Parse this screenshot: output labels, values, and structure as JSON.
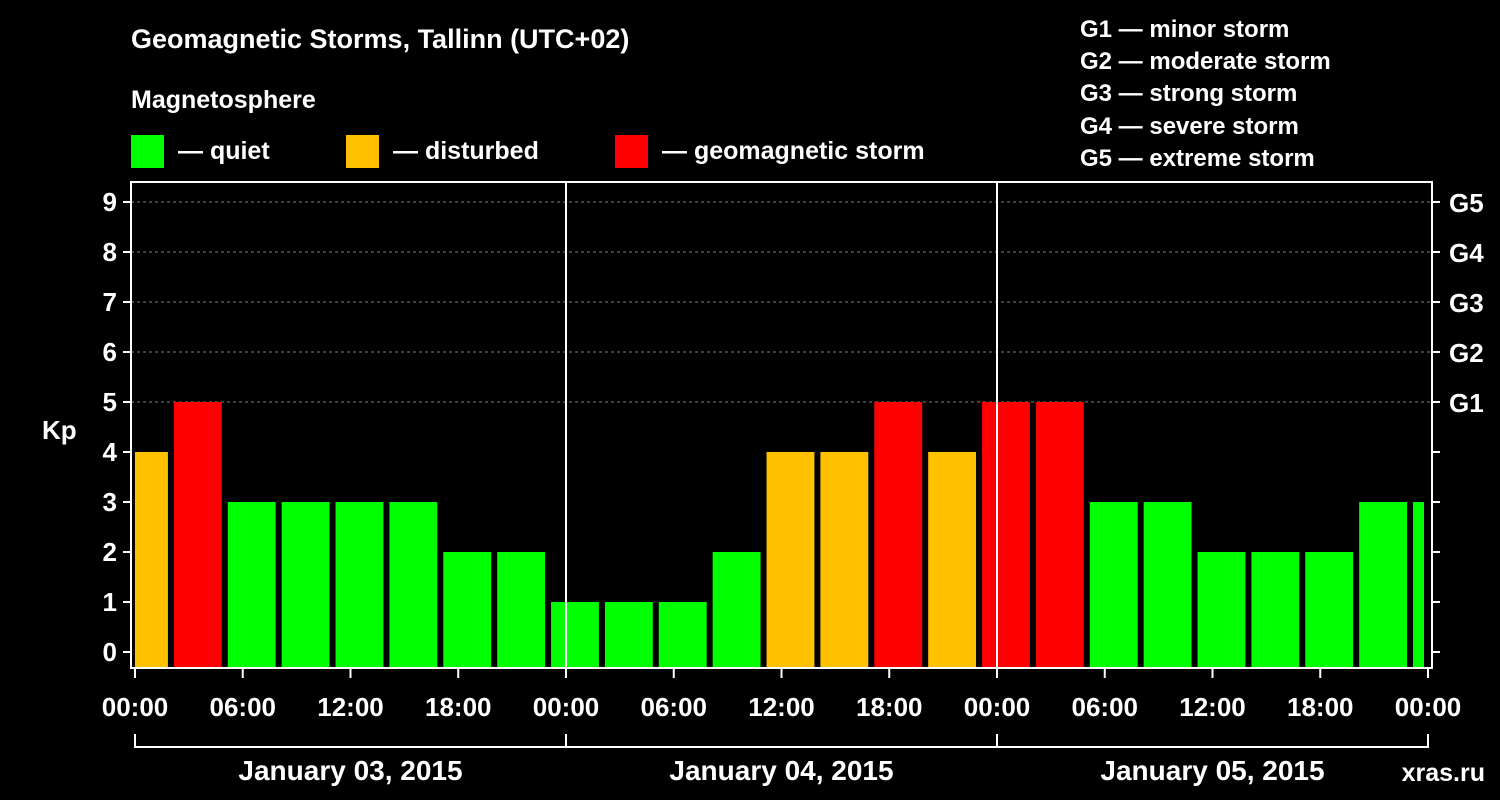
{
  "title": "Geomagnetic Storms, Tallinn (UTC+02)",
  "subtitle": "Magnetosphere",
  "legend": [
    {
      "label": "— quiet",
      "color": "#00ff00"
    },
    {
      "label": "— disturbed",
      "color": "#ffc000"
    },
    {
      "label": "— geomagnetic storm",
      "color": "#ff0000"
    }
  ],
  "g_scale": [
    "G1 — minor storm",
    "G2 — moderate storm",
    "G3 — strong storm",
    "G4 — severe storm",
    "G5 — extreme storm"
  ],
  "watermark": "xras.ru",
  "colors": {
    "quiet": "#00ff00",
    "disturbed": "#ffc000",
    "storm": "#ff0000",
    "background": "#000000",
    "axis": "#ffffff"
  },
  "chart_data": {
    "type": "bar",
    "ylabel": "Kp",
    "ylim": [
      0,
      9
    ],
    "yticks": [
      0,
      1,
      2,
      3,
      4,
      5,
      6,
      7,
      8,
      9
    ],
    "grid_y_values": [
      5,
      6,
      7,
      8,
      9
    ],
    "right_axis_labels": [
      {
        "value": 5,
        "label": "G1"
      },
      {
        "value": 6,
        "label": "G2"
      },
      {
        "value": 7,
        "label": "G3"
      },
      {
        "value": 8,
        "label": "G4"
      },
      {
        "value": 9,
        "label": "G5"
      }
    ],
    "x_tick_labels": [
      "00:00",
      "06:00",
      "12:00",
      "18:00",
      "00:00",
      "06:00",
      "12:00",
      "18:00",
      "00:00",
      "06:00",
      "12:00",
      "18:00",
      "00:00"
    ],
    "hours_total": 72,
    "day_labels": [
      "January 03, 2015",
      "January 04, 2015",
      "January 05, 2015"
    ],
    "bars": [
      {
        "start_hour": 0,
        "end_hour": 2,
        "kp": 4,
        "level": "disturbed"
      },
      {
        "start_hour": 2,
        "end_hour": 5,
        "kp": 5,
        "level": "storm"
      },
      {
        "start_hour": 5,
        "end_hour": 8,
        "kp": 3,
        "level": "quiet"
      },
      {
        "start_hour": 8,
        "end_hour": 11,
        "kp": 3,
        "level": "quiet"
      },
      {
        "start_hour": 11,
        "end_hour": 14,
        "kp": 3,
        "level": "quiet"
      },
      {
        "start_hour": 14,
        "end_hour": 17,
        "kp": 3,
        "level": "quiet"
      },
      {
        "start_hour": 17,
        "end_hour": 20,
        "kp": 2,
        "level": "quiet"
      },
      {
        "start_hour": 20,
        "end_hour": 23,
        "kp": 2,
        "level": "quiet"
      },
      {
        "start_hour": 23,
        "end_hour": 26,
        "kp": 1,
        "level": "quiet"
      },
      {
        "start_hour": 26,
        "end_hour": 29,
        "kp": 1,
        "level": "quiet"
      },
      {
        "start_hour": 29,
        "end_hour": 32,
        "kp": 1,
        "level": "quiet"
      },
      {
        "start_hour": 32,
        "end_hour": 35,
        "kp": 2,
        "level": "quiet"
      },
      {
        "start_hour": 35,
        "end_hour": 38,
        "kp": 4,
        "level": "disturbed"
      },
      {
        "start_hour": 38,
        "end_hour": 41,
        "kp": 4,
        "level": "disturbed"
      },
      {
        "start_hour": 41,
        "end_hour": 44,
        "kp": 5,
        "level": "storm"
      },
      {
        "start_hour": 44,
        "end_hour": 47,
        "kp": 4,
        "level": "disturbed"
      },
      {
        "start_hour": 47,
        "end_hour": 50,
        "kp": 5,
        "level": "storm"
      },
      {
        "start_hour": 50,
        "end_hour": 53,
        "kp": 5,
        "level": "storm"
      },
      {
        "start_hour": 53,
        "end_hour": 56,
        "kp": 3,
        "level": "quiet"
      },
      {
        "start_hour": 56,
        "end_hour": 59,
        "kp": 3,
        "level": "quiet"
      },
      {
        "start_hour": 59,
        "end_hour": 62,
        "kp": 2,
        "level": "quiet"
      },
      {
        "start_hour": 62,
        "end_hour": 65,
        "kp": 2,
        "level": "quiet"
      },
      {
        "start_hour": 65,
        "end_hour": 68,
        "kp": 2,
        "level": "quiet"
      },
      {
        "start_hour": 68,
        "end_hour": 71,
        "kp": 3,
        "level": "quiet"
      },
      {
        "start_hour": 71,
        "end_hour": 72,
        "kp": 3,
        "level": "quiet"
      }
    ]
  }
}
